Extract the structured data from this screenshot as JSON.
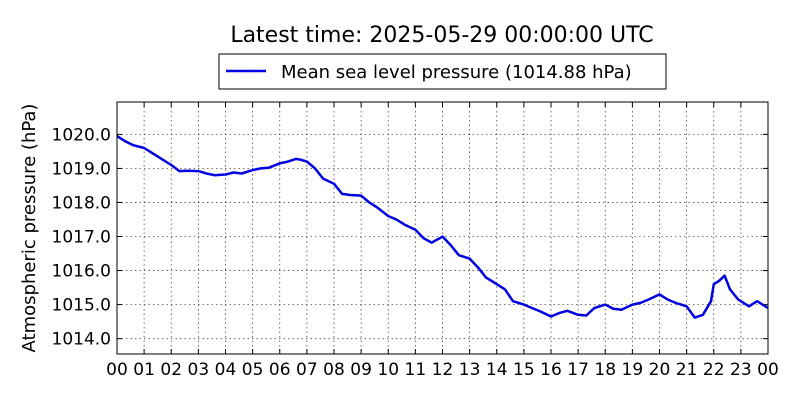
{
  "chart_data": {
    "type": "line",
    "title": "Latest time: 2025-05-29 00:00:00 UTC",
    "ylabel": "Atmospheric pressure (hPa)",
    "xlabel": "",
    "xlim": [
      0,
      24
    ],
    "ylim": [
      1013.55,
      1020.95
    ],
    "x_ticks": [
      0,
      1,
      2,
      3,
      4,
      5,
      6,
      7,
      8,
      9,
      10,
      11,
      12,
      13,
      14,
      15,
      16,
      17,
      18,
      19,
      20,
      21,
      22,
      23,
      24
    ],
    "x_tick_labels": [
      "00",
      "01",
      "02",
      "03",
      "04",
      "05",
      "06",
      "07",
      "08",
      "09",
      "10",
      "11",
      "12",
      "13",
      "14",
      "15",
      "16",
      "17",
      "18",
      "19",
      "20",
      "21",
      "22",
      "23",
      "00"
    ],
    "y_ticks": [
      1014.0,
      1015.0,
      1016.0,
      1017.0,
      1018.0,
      1019.0,
      1020.0
    ],
    "y_tick_labels": [
      "1014.0",
      "1015.0",
      "1016.0",
      "1017.0",
      "1018.0",
      "1019.0",
      "1020.0"
    ],
    "grid": true,
    "legend_position": "top-center",
    "series": [
      {
        "name": "Mean sea level pressure (1014.88 hPa)",
        "color": "#0000e0",
        "x": [
          0,
          0.3,
          0.6,
          1.0,
          1.3,
          1.6,
          2.0,
          2.3,
          2.6,
          3.0,
          3.3,
          3.6,
          4.0,
          4.3,
          4.6,
          5.0,
          5.3,
          5.6,
          6.0,
          6.3,
          6.6,
          6.8,
          7.0,
          7.3,
          7.6,
          8.0,
          8.3,
          8.6,
          9.0,
          9.3,
          9.6,
          10.0,
          10.3,
          10.6,
          11.0,
          11.3,
          11.6,
          11.9,
          12.0,
          12.3,
          12.6,
          13.0,
          13.3,
          13.6,
          14.0,
          14.3,
          14.6,
          15.0,
          15.3,
          15.6,
          16.0,
          16.3,
          16.6,
          17.0,
          17.3,
          17.6,
          18.0,
          18.3,
          18.6,
          19.0,
          19.3,
          19.6,
          20.0,
          20.3,
          20.6,
          21.0,
          21.3,
          21.6,
          21.9,
          22.0,
          22.2,
          22.4,
          22.6,
          22.9,
          23.0,
          23.3,
          23.6,
          24.0
        ],
        "y": [
          1019.95,
          1019.8,
          1019.68,
          1019.6,
          1019.45,
          1019.3,
          1019.1,
          1018.92,
          1018.93,
          1018.92,
          1018.85,
          1018.8,
          1018.82,
          1018.88,
          1018.85,
          1018.95,
          1019.0,
          1019.02,
          1019.15,
          1019.2,
          1019.28,
          1019.25,
          1019.2,
          1019.0,
          1018.7,
          1018.55,
          1018.25,
          1018.22,
          1018.2,
          1018.0,
          1017.85,
          1017.6,
          1017.5,
          1017.35,
          1017.2,
          1016.95,
          1016.82,
          1016.95,
          1017.0,
          1016.75,
          1016.45,
          1016.35,
          1016.1,
          1015.8,
          1015.6,
          1015.45,
          1015.1,
          1015.0,
          1014.9,
          1014.8,
          1014.65,
          1014.75,
          1014.82,
          1014.7,
          1014.68,
          1014.9,
          1015.0,
          1014.88,
          1014.85,
          1015.0,
          1015.05,
          1015.15,
          1015.3,
          1015.15,
          1015.05,
          1014.95,
          1014.62,
          1014.7,
          1015.1,
          1015.6,
          1015.7,
          1015.85,
          1015.45,
          1015.15,
          1015.1,
          1014.95,
          1015.1,
          1014.9
        ]
      }
    ]
  }
}
